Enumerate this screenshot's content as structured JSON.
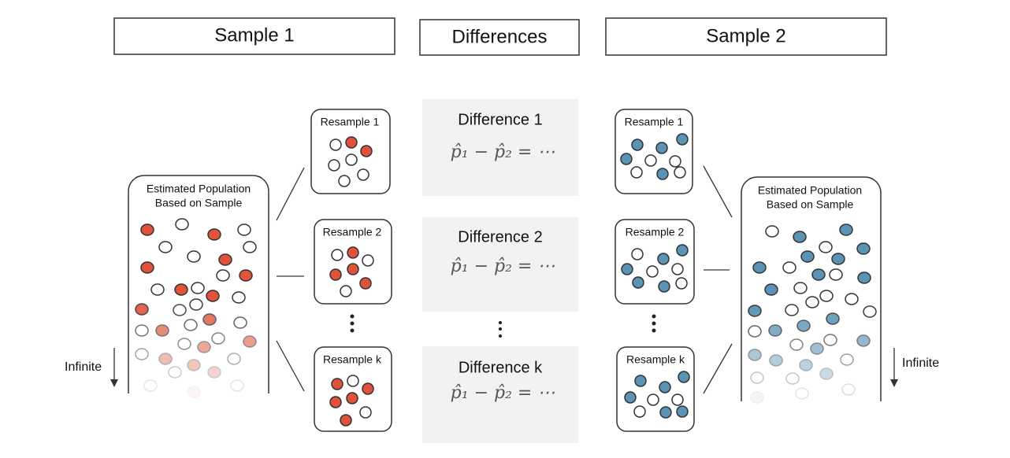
{
  "headers": [
    "Sample 1",
    "Differences",
    "Sample 2"
  ],
  "sample_1": {
    "population_label": [
      "Estimated Population",
      "Based on Sample"
    ],
    "infinite_label": "Infinite",
    "resamples": [
      "Resample 1",
      "Resample 2",
      "Resample k"
    ]
  },
  "sample_2": {
    "population_label": [
      "Estimated Population",
      "Based on Sample"
    ],
    "infinite_label": "Infinite",
    "resamples": [
      "Resample 1",
      "Resample 2",
      "Resample k"
    ]
  },
  "differences": [
    {
      "label": "Difference 1",
      "formula": "p̂₁ − p̂₂ = ⋯"
    },
    {
      "label": "Difference 2",
      "formula": "p̂₁ − p̂₂ = ⋯"
    },
    {
      "label": "Difference k",
      "formula": "p̂₁ − p̂₂ = ⋯"
    }
  ]
}
